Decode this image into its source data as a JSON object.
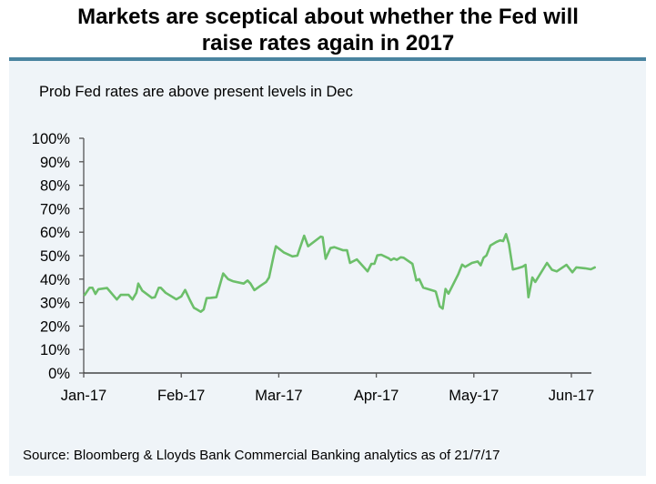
{
  "title_line1": "Markets are sceptical about whether the Fed will",
  "title_line2": "raise rates again in 2017",
  "source": "Source: Bloomberg & Lloyds Bank Commercial Banking analytics as of 21/7/17",
  "colors": {
    "line": "#6cbf6a",
    "panel": "#eff4f8",
    "accent": "#4a84a0"
  },
  "chart_data": {
    "type": "line",
    "title": "Prob Fed rates are above present levels in Dec",
    "xlabel": "",
    "ylabel": "",
    "ylim": [
      0,
      100
    ],
    "y_ticks": [
      "0%",
      "10%",
      "20%",
      "30%",
      "40%",
      "50%",
      "60%",
      "70%",
      "80%",
      "90%",
      "100%"
    ],
    "x_ticks": [
      "Jan-17",
      "Feb-17",
      "Mar-17",
      "Apr-17",
      "May-17",
      "Jun-17"
    ],
    "x_units": "months since Jan-17 (0 = Jan-17, 5 = Jun-17)",
    "xlim": [
      0,
      5.2
    ],
    "grid": false,
    "legend": "none",
    "series": [
      {
        "name": "Prob Fed rates are above present levels in Dec",
        "points": [
          [
            0.01,
            33.3
          ],
          [
            0.06,
            36.3
          ],
          [
            0.09,
            36.3
          ],
          [
            0.12,
            33.7
          ],
          [
            0.15,
            35.7
          ],
          [
            0.24,
            36.2
          ],
          [
            0.34,
            31.3
          ],
          [
            0.38,
            33.3
          ],
          [
            0.46,
            33.3
          ],
          [
            0.5,
            31.3
          ],
          [
            0.54,
            34.2
          ],
          [
            0.56,
            38.1
          ],
          [
            0.6,
            35.1
          ],
          [
            0.7,
            32.0
          ],
          [
            0.73,
            32.3
          ],
          [
            0.77,
            36.3
          ],
          [
            0.79,
            36.3
          ],
          [
            0.84,
            34.2
          ],
          [
            0.95,
            31.4
          ],
          [
            1.0,
            32.6
          ],
          [
            1.04,
            35.4
          ],
          [
            1.09,
            31.0
          ],
          [
            1.13,
            27.8
          ],
          [
            1.16,
            27.1
          ],
          [
            1.2,
            26.1
          ],
          [
            1.23,
            27.1
          ],
          [
            1.26,
            31.9
          ],
          [
            1.3,
            32.0
          ],
          [
            1.36,
            32.3
          ],
          [
            1.43,
            42.4
          ],
          [
            1.48,
            40.0
          ],
          [
            1.53,
            39.1
          ],
          [
            1.64,
            38.1
          ],
          [
            1.68,
            39.4
          ],
          [
            1.71,
            38.1
          ],
          [
            1.75,
            35.3
          ],
          [
            1.81,
            37.1
          ],
          [
            1.87,
            38.8
          ],
          [
            1.9,
            40.7
          ],
          [
            1.95,
            50.4
          ],
          [
            1.97,
            54.0
          ],
          [
            2.05,
            51.4
          ],
          [
            2.14,
            49.7
          ],
          [
            2.19,
            50.0
          ],
          [
            2.26,
            58.5
          ],
          [
            2.3,
            54.0
          ],
          [
            2.43,
            58.1
          ],
          [
            2.45,
            57.9
          ],
          [
            2.48,
            48.7
          ],
          [
            2.53,
            53.2
          ],
          [
            2.57,
            53.6
          ],
          [
            2.66,
            52.3
          ],
          [
            2.7,
            52.3
          ],
          [
            2.73,
            46.9
          ],
          [
            2.8,
            48.4
          ],
          [
            2.91,
            43.3
          ],
          [
            2.95,
            46.5
          ],
          [
            2.98,
            46.5
          ],
          [
            3.01,
            50.1
          ],
          [
            3.05,
            50.4
          ],
          [
            3.13,
            48.8
          ],
          [
            3.15,
            48.1
          ],
          [
            3.18,
            48.8
          ],
          [
            3.21,
            48.2
          ],
          [
            3.25,
            49.3
          ],
          [
            3.28,
            49.1
          ],
          [
            3.37,
            46.5
          ],
          [
            3.41,
            39.4
          ],
          [
            3.44,
            40.0
          ],
          [
            3.48,
            36.4
          ],
          [
            3.6,
            34.9
          ],
          [
            3.61,
            34.6
          ],
          [
            3.65,
            28.4
          ],
          [
            3.68,
            27.4
          ],
          [
            3.71,
            35.8
          ],
          [
            3.74,
            33.8
          ],
          [
            3.84,
            42.0
          ],
          [
            3.88,
            46.2
          ],
          [
            3.91,
            45.2
          ],
          [
            3.98,
            46.9
          ],
          [
            4.04,
            47.5
          ],
          [
            4.07,
            45.9
          ],
          [
            4.1,
            49.1
          ],
          [
            4.13,
            50.1
          ],
          [
            4.17,
            54.3
          ],
          [
            4.23,
            55.8
          ],
          [
            4.27,
            56.5
          ],
          [
            4.3,
            56.2
          ],
          [
            4.33,
            59.2
          ],
          [
            4.36,
            54.9
          ],
          [
            4.4,
            44.1
          ],
          [
            4.45,
            44.6
          ],
          [
            4.5,
            45.3
          ],
          [
            4.53,
            46.1
          ],
          [
            4.56,
            32.3
          ],
          [
            4.6,
            40.7
          ],
          [
            4.63,
            38.8
          ],
          [
            4.75,
            46.9
          ],
          [
            4.8,
            44.0
          ],
          [
            4.85,
            43.3
          ],
          [
            4.95,
            46.1
          ],
          [
            5.01,
            42.9
          ],
          [
            5.05,
            45.0
          ],
          [
            5.14,
            44.6
          ],
          [
            5.2,
            44.2
          ],
          [
            5.24,
            45.0
          ]
        ]
      }
    ]
  }
}
